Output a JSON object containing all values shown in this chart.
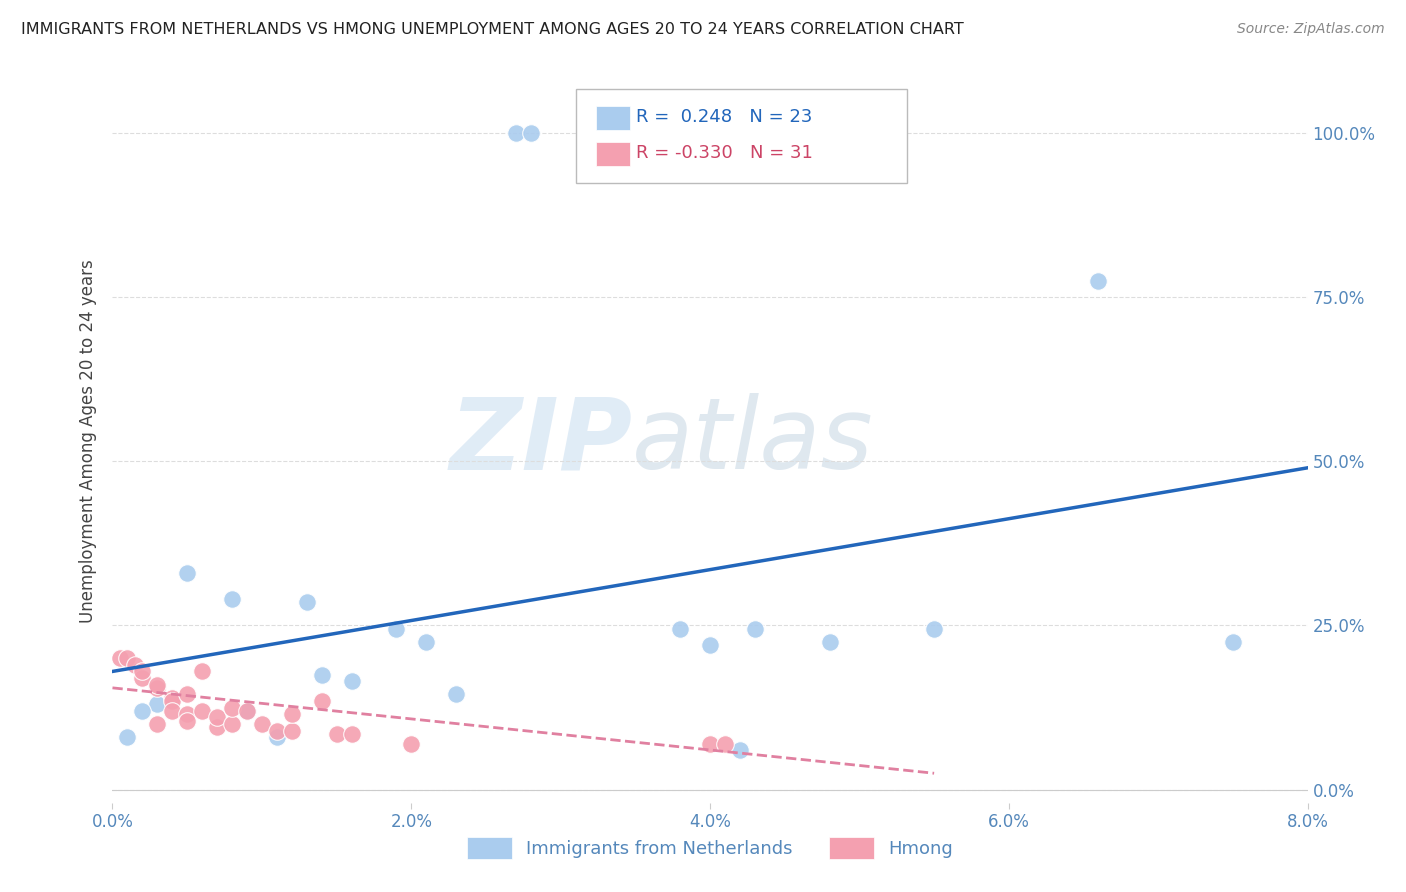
{
  "title": "IMMIGRANTS FROM NETHERLANDS VS HMONG UNEMPLOYMENT AMONG AGES 20 TO 24 YEARS CORRELATION CHART",
  "source": "Source: ZipAtlas.com",
  "ylabel": "Unemployment Among Ages 20 to 24 years",
  "xlim": [
    0.0,
    0.08
  ],
  "ylim": [
    -0.02,
    1.08
  ],
  "xticks": [
    0.0,
    0.02,
    0.04,
    0.06,
    0.08
  ],
  "xticklabels": [
    "0.0%",
    "2.0%",
    "4.0%",
    "6.0%",
    "8.0%"
  ],
  "yticks": [
    0.0,
    0.25,
    0.5,
    0.75,
    1.0
  ],
  "yticklabels": [
    "0.0%",
    "25.0%",
    "50.0%",
    "75.0%",
    "100.0%"
  ],
  "watermark_zip": "ZIP",
  "watermark_atlas": "atlas",
  "blue_scatter_x": [
    0.027,
    0.028,
    0.005,
    0.008,
    0.013,
    0.019,
    0.021,
    0.014,
    0.016,
    0.038,
    0.04,
    0.043,
    0.048,
    0.066,
    0.055,
    0.075,
    0.003,
    0.009,
    0.011,
    0.023,
    0.042,
    0.002,
    0.001
  ],
  "blue_scatter_y": [
    1.0,
    1.0,
    0.33,
    0.29,
    0.285,
    0.245,
    0.225,
    0.175,
    0.165,
    0.245,
    0.22,
    0.245,
    0.225,
    0.775,
    0.245,
    0.225,
    0.13,
    0.12,
    0.08,
    0.145,
    0.06,
    0.12,
    0.08
  ],
  "pink_scatter_x": [
    0.0005,
    0.001,
    0.0015,
    0.002,
    0.002,
    0.003,
    0.003,
    0.003,
    0.004,
    0.004,
    0.004,
    0.005,
    0.005,
    0.005,
    0.006,
    0.006,
    0.007,
    0.007,
    0.008,
    0.008,
    0.009,
    0.01,
    0.011,
    0.012,
    0.012,
    0.014,
    0.015,
    0.016,
    0.02,
    0.04,
    0.041
  ],
  "pink_scatter_y": [
    0.2,
    0.2,
    0.19,
    0.17,
    0.18,
    0.155,
    0.16,
    0.1,
    0.14,
    0.135,
    0.12,
    0.115,
    0.105,
    0.145,
    0.12,
    0.18,
    0.095,
    0.11,
    0.1,
    0.125,
    0.12,
    0.1,
    0.09,
    0.09,
    0.115,
    0.135,
    0.085,
    0.085,
    0.07,
    0.07,
    0.07
  ],
  "blue_line_x": [
    0.0,
    0.08
  ],
  "blue_line_y": [
    0.18,
    0.49
  ],
  "pink_line_x": [
    0.0,
    0.055
  ],
  "pink_line_y": [
    0.155,
    0.025
  ],
  "blue_color": "#aaccee",
  "pink_color": "#f4a0b0",
  "blue_line_color": "#2266bb",
  "pink_line_color": "#e080a0",
  "title_color": "#222222",
  "axis_color": "#5588bb",
  "grid_color": "#dddddd",
  "background_color": "#ffffff",
  "legend_r1": "R =  0.248   N = 23",
  "legend_r2": "R = -0.330   N = 31",
  "legend_r1_color": "#2266bb",
  "legend_r2_color": "#cc4466",
  "bottom_legend_label1": "Immigrants from Netherlands",
  "bottom_legend_label2": "Hmong"
}
